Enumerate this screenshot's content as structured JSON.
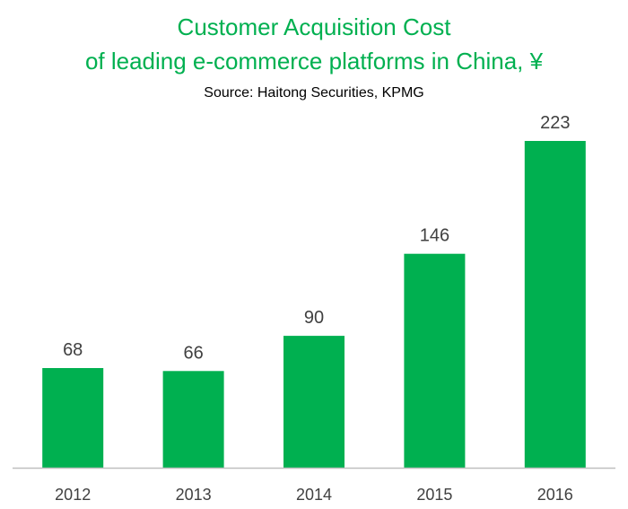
{
  "chart_data": {
    "type": "bar",
    "title_line1": "Customer Acquisition Cost",
    "title_line2": "of leading e-commerce platforms in China, ¥",
    "subtitle": "Source: Haitong Securities, KPMG",
    "categories": [
      "2012",
      "2013",
      "2014",
      "2015",
      "2016"
    ],
    "values": [
      68,
      66,
      90,
      146,
      223
    ],
    "xlabel": "",
    "ylabel": "",
    "ylim": [
      0,
      223
    ],
    "grid": false,
    "legend": "none",
    "bar_color": "#00B050",
    "axis_color": "#BFBFBF",
    "title_color": "#00B050"
  }
}
